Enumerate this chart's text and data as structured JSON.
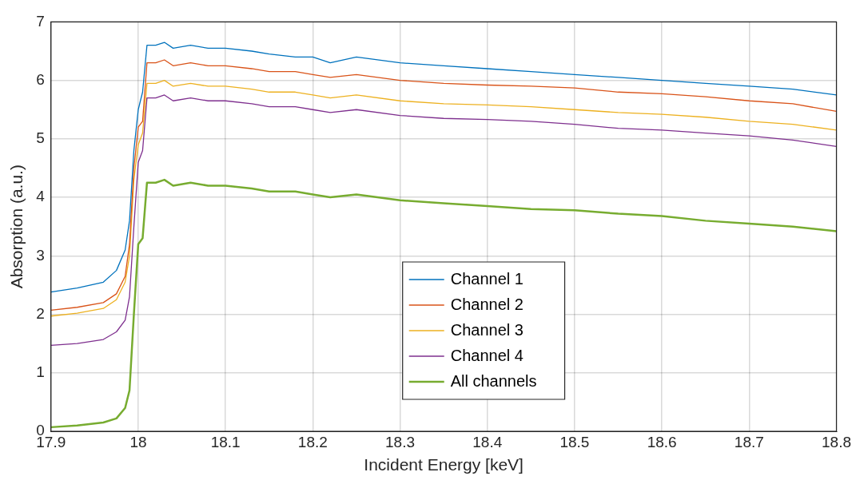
{
  "chart_data": {
    "type": "line",
    "xlabel": "Incident Energy [keV]",
    "ylabel": "Absorption (a.u.)",
    "x": [
      17.9,
      17.93,
      17.96,
      17.975,
      17.985,
      17.99,
      17.995,
      18.0,
      18.005,
      18.01,
      18.02,
      18.03,
      18.04,
      18.06,
      18.08,
      18.1,
      18.13,
      18.15,
      18.18,
      18.2,
      18.22,
      18.25,
      18.3,
      18.35,
      18.4,
      18.45,
      18.5,
      18.55,
      18.6,
      18.65,
      18.7,
      18.75,
      18.8
    ],
    "series": [
      {
        "name": "Channel 1",
        "color": "#0072bd",
        "values": [
          2.38,
          2.45,
          2.55,
          2.75,
          3.1,
          3.6,
          4.8,
          5.5,
          5.8,
          6.6,
          6.6,
          6.65,
          6.55,
          6.6,
          6.55,
          6.55,
          6.5,
          6.45,
          6.4,
          6.4,
          6.3,
          6.4,
          6.3,
          6.25,
          6.2,
          6.15,
          6.1,
          6.05,
          6.0,
          5.95,
          5.9,
          5.85,
          5.75
        ]
      },
      {
        "name": "Channel 2",
        "color": "#d95319",
        "values": [
          2.07,
          2.12,
          2.2,
          2.35,
          2.65,
          3.2,
          4.5,
          5.2,
          5.3,
          6.3,
          6.3,
          6.35,
          6.25,
          6.3,
          6.25,
          6.25,
          6.2,
          6.15,
          6.15,
          6.1,
          6.05,
          6.1,
          6.0,
          5.95,
          5.92,
          5.9,
          5.87,
          5.8,
          5.77,
          5.72,
          5.65,
          5.6,
          5.47
        ]
      },
      {
        "name": "Channel 3",
        "color": "#edb120",
        "values": [
          1.97,
          2.02,
          2.1,
          2.25,
          2.55,
          3.0,
          4.3,
          4.9,
          5.1,
          5.95,
          5.95,
          6.0,
          5.9,
          5.95,
          5.9,
          5.9,
          5.85,
          5.8,
          5.8,
          5.75,
          5.7,
          5.75,
          5.65,
          5.6,
          5.58,
          5.55,
          5.5,
          5.45,
          5.42,
          5.37,
          5.3,
          5.25,
          5.15
        ]
      },
      {
        "name": "Channel 4",
        "color": "#7e2f8e",
        "values": [
          1.47,
          1.5,
          1.57,
          1.7,
          1.9,
          2.3,
          3.5,
          4.6,
          4.8,
          5.7,
          5.7,
          5.75,
          5.65,
          5.7,
          5.65,
          5.65,
          5.6,
          5.55,
          5.55,
          5.5,
          5.45,
          5.5,
          5.4,
          5.35,
          5.33,
          5.3,
          5.25,
          5.18,
          5.15,
          5.1,
          5.05,
          4.98,
          4.87
        ]
      },
      {
        "name": "All channels",
        "color": "#77ac30",
        "values": [
          0.07,
          0.1,
          0.15,
          0.22,
          0.4,
          0.7,
          2.0,
          3.2,
          3.3,
          4.25,
          4.25,
          4.3,
          4.2,
          4.25,
          4.2,
          4.2,
          4.15,
          4.1,
          4.1,
          4.05,
          4.0,
          4.05,
          3.95,
          3.9,
          3.85,
          3.8,
          3.78,
          3.72,
          3.68,
          3.6,
          3.55,
          3.5,
          3.42
        ]
      }
    ],
    "xlim": [
      17.9,
      18.8
    ],
    "xticks": [
      17.9,
      18,
      18.1,
      18.2,
      18.3,
      18.4,
      18.5,
      18.6,
      18.7,
      18.8
    ],
    "ylim": [
      0,
      7
    ],
    "yticks": [
      0,
      1,
      2,
      3,
      4,
      5,
      6,
      7
    ],
    "grid": true,
    "legend": "bottom",
    "marker": "none",
    "line_style": "solid"
  }
}
